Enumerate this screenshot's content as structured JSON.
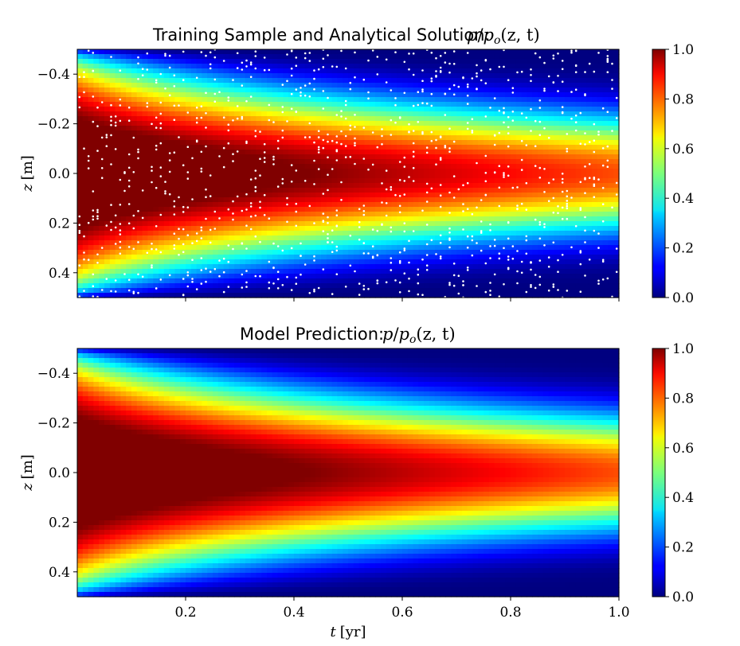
{
  "chart_data": [
    {
      "type": "heatmap",
      "title": "Training Sample and Analytical Solution: ",
      "title_math": "p/p_o(z,t)",
      "xlabel": "t [yr]",
      "ylabel": "z [m]",
      "xlim": [
        0.0,
        1.0
      ],
      "ylim": [
        0.5,
        -0.5
      ],
      "xticks": [
        "0.2",
        "0.4",
        "0.6",
        "0.8",
        "1.0"
      ],
      "yticks": [
        "−0.4",
        "−0.2",
        "0.0",
        "0.2",
        "0.4"
      ],
      "xtick_values": [
        0.2,
        0.4,
        0.6,
        0.8,
        1.0
      ],
      "ytick_values": [
        -0.4,
        -0.2,
        0.0,
        0.2,
        0.4
      ],
      "x_tick_labels_shown": false,
      "colormap": "jet",
      "colorbar": {
        "range": [
          0.0,
          1.0
        ],
        "ticks": [
          "0.0",
          "0.2",
          "0.4",
          "0.6",
          "0.8",
          "1.0"
        ],
        "tick_values": [
          0.0,
          0.2,
          0.4,
          0.6,
          0.8,
          1.0
        ]
      },
      "overlay": "training sample points (white dots)",
      "grid": false
    },
    {
      "type": "heatmap",
      "title": "Model Prediction: ",
      "title_math": "p/p_o(z,t)",
      "xlabel": "t [yr]",
      "ylabel": "z [m]",
      "xlim": [
        0.0,
        1.0
      ],
      "ylim": [
        0.5,
        -0.5
      ],
      "xticks": [
        "0.2",
        "0.4",
        "0.6",
        "0.8",
        "1.0"
      ],
      "yticks": [
        "−0.4",
        "−0.2",
        "0.0",
        "0.2",
        "0.4"
      ],
      "xtick_values": [
        0.2,
        0.4,
        0.6,
        0.8,
        1.0
      ],
      "ytick_values": [
        -0.4,
        -0.2,
        0.0,
        0.2,
        0.4
      ],
      "x_tick_labels_shown": true,
      "colormap": "jet",
      "colorbar": {
        "range": [
          0.0,
          1.0
        ],
        "ticks": [
          "0.0",
          "0.2",
          "0.4",
          "0.6",
          "0.8",
          "1.0"
        ],
        "tick_values": [
          0.0,
          0.2,
          0.4,
          0.6,
          0.8,
          1.0
        ]
      },
      "grid": false
    }
  ],
  "labels": {
    "top_title": "Training Sample and Analytical Solution:",
    "bottom_title": "Model Prediction:",
    "title_math_p": "p",
    "title_math_slash": "/",
    "title_math_po": "p",
    "title_math_sub": "o",
    "title_math_args": "(z, t)",
    "y_label_var": "z",
    "y_label_unit": "[m]",
    "x_label_var": "t",
    "x_label_unit": "[yr]"
  }
}
